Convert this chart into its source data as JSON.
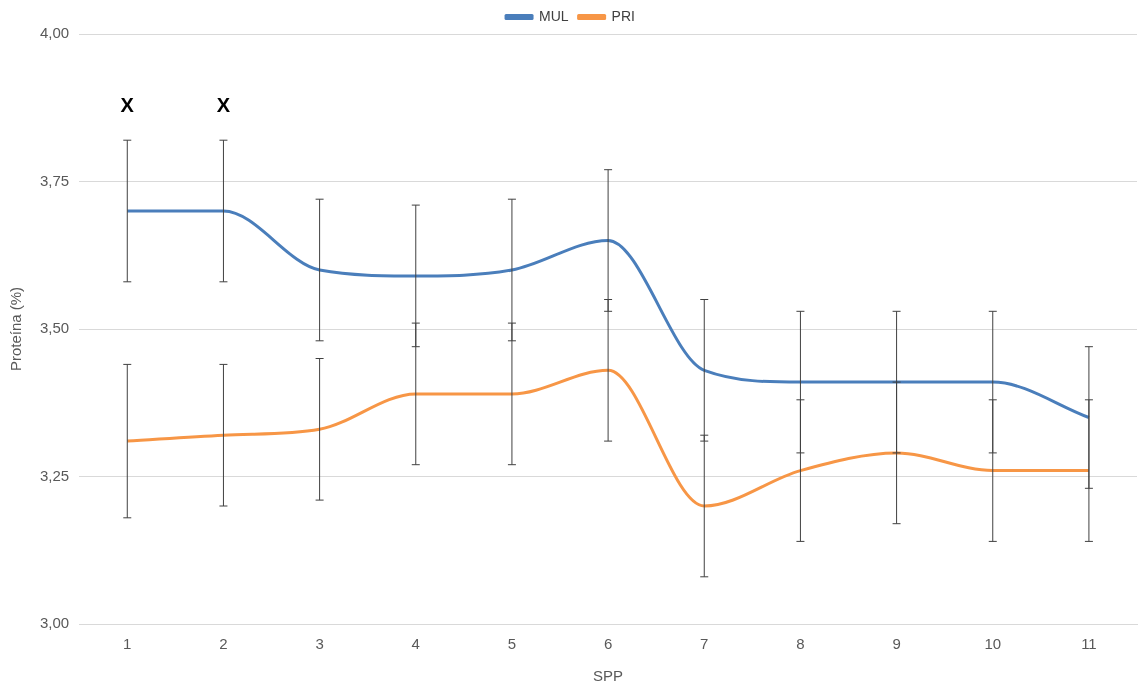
{
  "chart_data": {
    "type": "line",
    "xlabel": "SPP",
    "ylabel": "Proteína (%)",
    "categories": [
      "1",
      "2",
      "3",
      "4",
      "5",
      "6",
      "7",
      "8",
      "9",
      "10",
      "11"
    ],
    "series": [
      {
        "name": "MUL",
        "color": "#4a7ebb",
        "values": [
          3.7,
          3.7,
          3.6,
          3.59,
          3.6,
          3.65,
          3.43,
          3.41,
          3.41,
          3.41,
          3.35
        ],
        "errors": [
          0.12,
          0.12,
          0.12,
          0.12,
          0.12,
          0.12,
          0.12,
          0.12,
          0.12,
          0.12,
          0.12
        ]
      },
      {
        "name": "PRI",
        "color": "#f79646",
        "values": [
          3.31,
          3.32,
          3.33,
          3.39,
          3.39,
          3.43,
          3.2,
          3.26,
          3.29,
          3.26,
          3.26
        ],
        "errors": [
          0.13,
          0.12,
          0.12,
          0.12,
          0.12,
          0.12,
          0.12,
          0.12,
          0.12,
          0.12,
          0.12
        ]
      }
    ],
    "ylim": [
      3.0,
      4.0
    ],
    "yticks": [
      {
        "value": 3.0,
        "label": "3,00"
      },
      {
        "value": 3.25,
        "label": "3,25"
      },
      {
        "value": 3.5,
        "label": "3,50"
      },
      {
        "value": 3.75,
        "label": "3,75"
      },
      {
        "value": 4.0,
        "label": "4,00"
      }
    ],
    "annotations": [
      "X",
      "X"
    ],
    "grid": "y",
    "legend": "top",
    "marker": "none",
    "line_style": "solid"
  }
}
